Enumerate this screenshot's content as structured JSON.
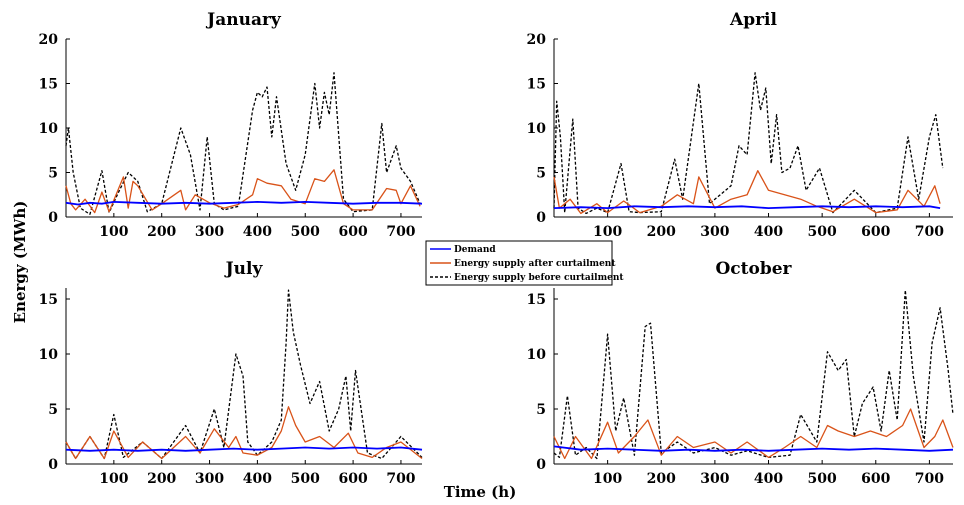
{
  "figure": {
    "ylabel": "Energy (MWh)",
    "xlabel": "Time (h)"
  },
  "legend": [
    {
      "name": "Demand",
      "color": "#0000ff",
      "style": "solid"
    },
    {
      "name": "Energy supply after curtailment",
      "color": "#d95319",
      "style": "solid"
    },
    {
      "name": "Energy supply before curtailment",
      "color": "#000000",
      "style": "dashed"
    }
  ],
  "chart_data": [
    {
      "type": "line",
      "title": "January",
      "xlim": [
        0,
        744
      ],
      "ylim": [
        0,
        20
      ],
      "xticks": [
        100,
        200,
        300,
        400,
        500,
        600,
        700
      ],
      "yticks": [
        0,
        5,
        10,
        15,
        20
      ],
      "grid": false,
      "series": [
        {
          "name": "Demand",
          "x": [
            0,
            25,
            50,
            75,
            100,
            150,
            200,
            250,
            300,
            350,
            400,
            450,
            500,
            550,
            600,
            650,
            700,
            744
          ],
          "y": [
            1.6,
            1.4,
            1.6,
            1.5,
            1.7,
            1.6,
            1.5,
            1.6,
            1.5,
            1.6,
            1.7,
            1.6,
            1.7,
            1.6,
            1.5,
            1.6,
            1.6,
            1.5
          ]
        },
        {
          "name": "Energy supply after curtailment",
          "x": [
            0,
            10,
            20,
            40,
            60,
            75,
            90,
            120,
            130,
            140,
            150,
            180,
            200,
            240,
            250,
            270,
            300,
            330,
            360,
            390,
            400,
            420,
            450,
            470,
            500,
            520,
            540,
            560,
            580,
            600,
            640,
            670,
            690,
            700,
            720,
            740
          ],
          "y": [
            3.5,
            1.5,
            0.8,
            2.0,
            0.5,
            2.8,
            0.6,
            4.5,
            1.0,
            4.0,
            3.5,
            0.8,
            1.5,
            3.0,
            0.8,
            2.5,
            1.6,
            1.0,
            1.4,
            2.5,
            4.3,
            3.8,
            3.5,
            2.0,
            1.5,
            4.3,
            4.0,
            5.3,
            1.5,
            0.8,
            0.8,
            3.2,
            3.0,
            1.5,
            3.5,
            1.2
          ]
        },
        {
          "name": "Energy supply before curtailment",
          "x": [
            0,
            5,
            15,
            30,
            50,
            75,
            90,
            110,
            130,
            140,
            150,
            170,
            200,
            240,
            260,
            280,
            295,
            310,
            330,
            360,
            390,
            400,
            410,
            420,
            430,
            440,
            460,
            480,
            500,
            520,
            530,
            540,
            550,
            560,
            580,
            600,
            640,
            660,
            670,
            690,
            700,
            720,
            740
          ],
          "y": [
            8.0,
            10.0,
            5.0,
            1.0,
            0.3,
            5.2,
            0.5,
            2.8,
            5.0,
            4.5,
            4.0,
            0.6,
            1.5,
            10.0,
            7.0,
            0.8,
            9.0,
            1.5,
            0.8,
            1.2,
            12.0,
            14.0,
            13.5,
            14.6,
            9.0,
            13.5,
            6.0,
            3.0,
            7.0,
            15.0,
            10.0,
            14.0,
            11.5,
            16.2,
            2.0,
            0.6,
            0.8,
            10.5,
            5.0,
            8.0,
            5.5,
            4.0,
            1.5
          ]
        }
      ]
    },
    {
      "type": "line",
      "title": "April",
      "xlim": [
        0,
        744
      ],
      "ylim": [
        0,
        20
      ],
      "xticks": [
        100,
        200,
        300,
        400,
        500,
        600,
        700
      ],
      "yticks": [
        0,
        5,
        10,
        15,
        20
      ],
      "grid": false,
      "series": [
        {
          "name": "Demand",
          "x": [
            0,
            50,
            100,
            150,
            200,
            250,
            300,
            350,
            400,
            450,
            500,
            550,
            600,
            650,
            700,
            720
          ],
          "y": [
            1.0,
            1.1,
            1.0,
            1.2,
            1.1,
            1.2,
            1.1,
            1.2,
            1.0,
            1.1,
            1.2,
            1.1,
            1.2,
            1.1,
            1.2,
            1.0
          ]
        },
        {
          "name": "Energy supply after curtailment",
          "x": [
            0,
            10,
            30,
            50,
            80,
            100,
            130,
            160,
            200,
            230,
            260,
            270,
            300,
            330,
            360,
            380,
            400,
            430,
            460,
            490,
            520,
            560,
            600,
            640,
            660,
            690,
            710,
            720
          ],
          "y": [
            4.5,
            1.0,
            2.0,
            0.4,
            1.5,
            0.5,
            1.8,
            0.5,
            1.2,
            2.5,
            1.5,
            4.5,
            1.0,
            2.0,
            2.5,
            5.2,
            3.0,
            2.5,
            2.0,
            1.2,
            0.6,
            2.0,
            0.5,
            0.8,
            3.0,
            1.2,
            3.5,
            1.5
          ]
        },
        {
          "name": "Energy supply before curtailment",
          "x": [
            0,
            5,
            12,
            20,
            35,
            45,
            60,
            80,
            100,
            125,
            140,
            160,
            200,
            225,
            240,
            270,
            290,
            330,
            345,
            360,
            375,
            385,
            395,
            405,
            415,
            425,
            440,
            455,
            470,
            495,
            520,
            560,
            600,
            640,
            660,
            680,
            700,
            712,
            725
          ],
          "y": [
            1.0,
            13.0,
            9.0,
            0.5,
            11.0,
            1.0,
            0.4,
            1.0,
            0.5,
            6.0,
            0.6,
            0.5,
            0.6,
            6.5,
            2.0,
            15.0,
            1.5,
            3.5,
            8.0,
            7.0,
            16.2,
            12.0,
            14.5,
            6.0,
            11.5,
            5.0,
            5.5,
            8.0,
            3.0,
            5.5,
            0.5,
            3.0,
            0.5,
            1.0,
            9.0,
            2.0,
            9.0,
            11.5,
            5.5
          ]
        }
      ]
    },
    {
      "type": "line",
      "title": "July",
      "xlim": [
        0,
        744
      ],
      "ylim": [
        0,
        16
      ],
      "xticks": [
        100,
        200,
        300,
        400,
        500,
        600,
        700
      ],
      "yticks": [
        0,
        5,
        10,
        15
      ],
      "grid": false,
      "series": [
        {
          "name": "Demand",
          "x": [
            0,
            50,
            100,
            150,
            200,
            250,
            300,
            350,
            400,
            450,
            500,
            550,
            600,
            650,
            700,
            744
          ],
          "y": [
            1.3,
            1.2,
            1.3,
            1.2,
            1.3,
            1.2,
            1.3,
            1.4,
            1.3,
            1.4,
            1.5,
            1.4,
            1.5,
            1.4,
            1.5,
            1.3
          ]
        },
        {
          "name": "Energy supply after curtailment",
          "x": [
            0,
            20,
            50,
            80,
            100,
            130,
            160,
            200,
            250,
            280,
            310,
            340,
            355,
            370,
            400,
            430,
            450,
            465,
            480,
            500,
            530,
            560,
            590,
            610,
            640,
            670,
            700,
            744
          ],
          "y": [
            2.0,
            0.5,
            2.5,
            0.5,
            3.0,
            0.6,
            2.0,
            0.5,
            2.5,
            1.0,
            3.2,
            1.5,
            2.5,
            1.0,
            0.8,
            1.5,
            3.0,
            5.2,
            3.5,
            2.0,
            2.5,
            1.5,
            2.8,
            1.0,
            0.6,
            1.5,
            2.0,
            0.5
          ]
        },
        {
          "name": "Energy supply before curtailment",
          "x": [
            0,
            20,
            50,
            80,
            100,
            120,
            160,
            200,
            250,
            280,
            310,
            330,
            355,
            370,
            380,
            400,
            430,
            450,
            460,
            465,
            475,
            490,
            510,
            530,
            550,
            570,
            585,
            595,
            605,
            630,
            660,
            700,
            744
          ],
          "y": [
            2.0,
            0.5,
            2.5,
            0.5,
            4.5,
            0.6,
            2.0,
            0.5,
            3.5,
            1.0,
            5.0,
            1.5,
            10.0,
            8.0,
            2.0,
            0.8,
            2.0,
            4.0,
            11.0,
            15.8,
            12.0,
            9.0,
            5.5,
            7.5,
            3.0,
            5.0,
            8.0,
            3.0,
            8.5,
            1.0,
            0.5,
            2.5,
            0.6
          ]
        }
      ]
    },
    {
      "type": "line",
      "title": "October",
      "xlim": [
        0,
        744
      ],
      "ylim": [
        0,
        16
      ],
      "xticks": [
        100,
        200,
        300,
        400,
        500,
        600,
        700
      ],
      "yticks": [
        0,
        5,
        10,
        15
      ],
      "grid": false,
      "series": [
        {
          "name": "Demand",
          "x": [
            0,
            50,
            100,
            150,
            200,
            250,
            300,
            350,
            400,
            450,
            500,
            550,
            600,
            650,
            700,
            744
          ],
          "y": [
            1.6,
            1.3,
            1.4,
            1.3,
            1.2,
            1.3,
            1.2,
            1.3,
            1.2,
            1.3,
            1.4,
            1.3,
            1.4,
            1.3,
            1.2,
            1.3
          ]
        },
        {
          "name": "Energy supply after curtailment",
          "x": [
            0,
            20,
            40,
            70,
            100,
            120,
            150,
            175,
            200,
            230,
            260,
            300,
            330,
            360,
            400,
            430,
            460,
            490,
            510,
            530,
            560,
            590,
            620,
            650,
            665,
            690,
            710,
            725,
            744
          ],
          "y": [
            2.5,
            0.5,
            2.5,
            0.5,
            3.8,
            1.0,
            2.5,
            4.0,
            0.8,
            2.5,
            1.5,
            2.0,
            1.0,
            2.0,
            0.6,
            1.5,
            2.5,
            1.5,
            3.5,
            3.0,
            2.5,
            3.0,
            2.5,
            3.5,
            5.0,
            1.5,
            2.5,
            4.0,
            1.5
          ]
        },
        {
          "name": "Energy supply before curtailment",
          "x": [
            0,
            10,
            25,
            40,
            60,
            80,
            100,
            115,
            130,
            150,
            170,
            180,
            200,
            230,
            260,
            300,
            330,
            360,
            400,
            440,
            460,
            490,
            510,
            530,
            545,
            560,
            575,
            595,
            610,
            625,
            640,
            655,
            670,
            690,
            705,
            720,
            735,
            744
          ],
          "y": [
            1.0,
            0.6,
            6.2,
            0.8,
            1.5,
            0.5,
            11.8,
            3.0,
            6.0,
            0.8,
            12.5,
            12.8,
            1.0,
            2.0,
            1.0,
            1.5,
            0.8,
            1.2,
            0.6,
            0.8,
            4.5,
            2.0,
            10.2,
            8.5,
            9.5,
            2.5,
            5.5,
            7.0,
            3.0,
            8.5,
            4.0,
            15.8,
            8.0,
            2.0,
            11.0,
            14.2,
            8.5,
            4.5
          ]
        }
      ]
    }
  ]
}
